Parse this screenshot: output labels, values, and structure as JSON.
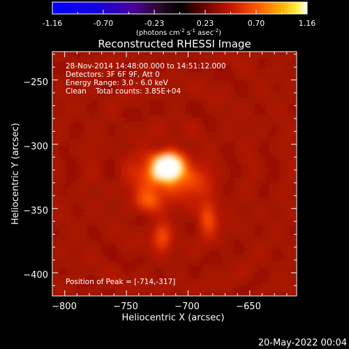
{
  "colorbar": {
    "ticks": [
      "-1.16",
      "-0.70",
      "-0.23",
      "0.23",
      "0.70",
      "1.16"
    ],
    "unit_label": "(photons cm",
    "unit_sup1": "-2",
    "unit_mid": " s",
    "unit_sup2": "-1",
    "unit_mid2": " asec",
    "unit_sup3": "-2",
    "unit_end": ")",
    "range": [
      -1.16,
      1.16
    ]
  },
  "chart_data": {
    "type": "heatmap",
    "title": "Reconstructed RHESSI Image",
    "xlabel": "Heliocentric X (arcsec)",
    "ylabel": "Heliocentric Y (arcsec)",
    "xlim": [
      -810,
      -612
    ],
    "ylim": [
      -418,
      -228
    ],
    "x_ticks": [
      -800,
      -750,
      -700,
      -650
    ],
    "y_ticks": [
      -250,
      -300,
      -350,
      -400
    ],
    "x_tick_labels": [
      "−800",
      "−750",
      "−700",
      "−650"
    ],
    "y_tick_labels": [
      "−250",
      "−300",
      "−350",
      "−400"
    ],
    "info": {
      "line1": "28-Nov-2014 14:48:00.000 to 14:51:12.000",
      "line2": "Detectors: 3F 6F 9F, Att 0",
      "line3": "Energy Range: 3.0 - 6.0 keV",
      "line4": "Clean    Total counts: 3.85E+04"
    },
    "peak_text": "Position of Peak = [-714,-317]",
    "peak": [
      -714,
      -317
    ],
    "sources": [
      {
        "x": -716,
        "y": -317,
        "sx": 9,
        "sy": 7,
        "amp": 1.16
      },
      {
        "x": -722,
        "y": -326,
        "sx": 16,
        "sy": 12,
        "amp": 0.55
      },
      {
        "x": -684,
        "y": -357,
        "sx": 5,
        "sy": 9,
        "amp": 0.55
      },
      {
        "x": -721,
        "y": -371,
        "sx": 5,
        "sy": 8,
        "amp": 0.5
      },
      {
        "x": -733,
        "y": -345,
        "sx": 7,
        "sy": 6,
        "amp": 0.35
      },
      {
        "x": -695,
        "y": -330,
        "sx": 10,
        "sy": 8,
        "amp": 0.3
      }
    ]
  },
  "footer_date": "20-May-2022 00:04"
}
